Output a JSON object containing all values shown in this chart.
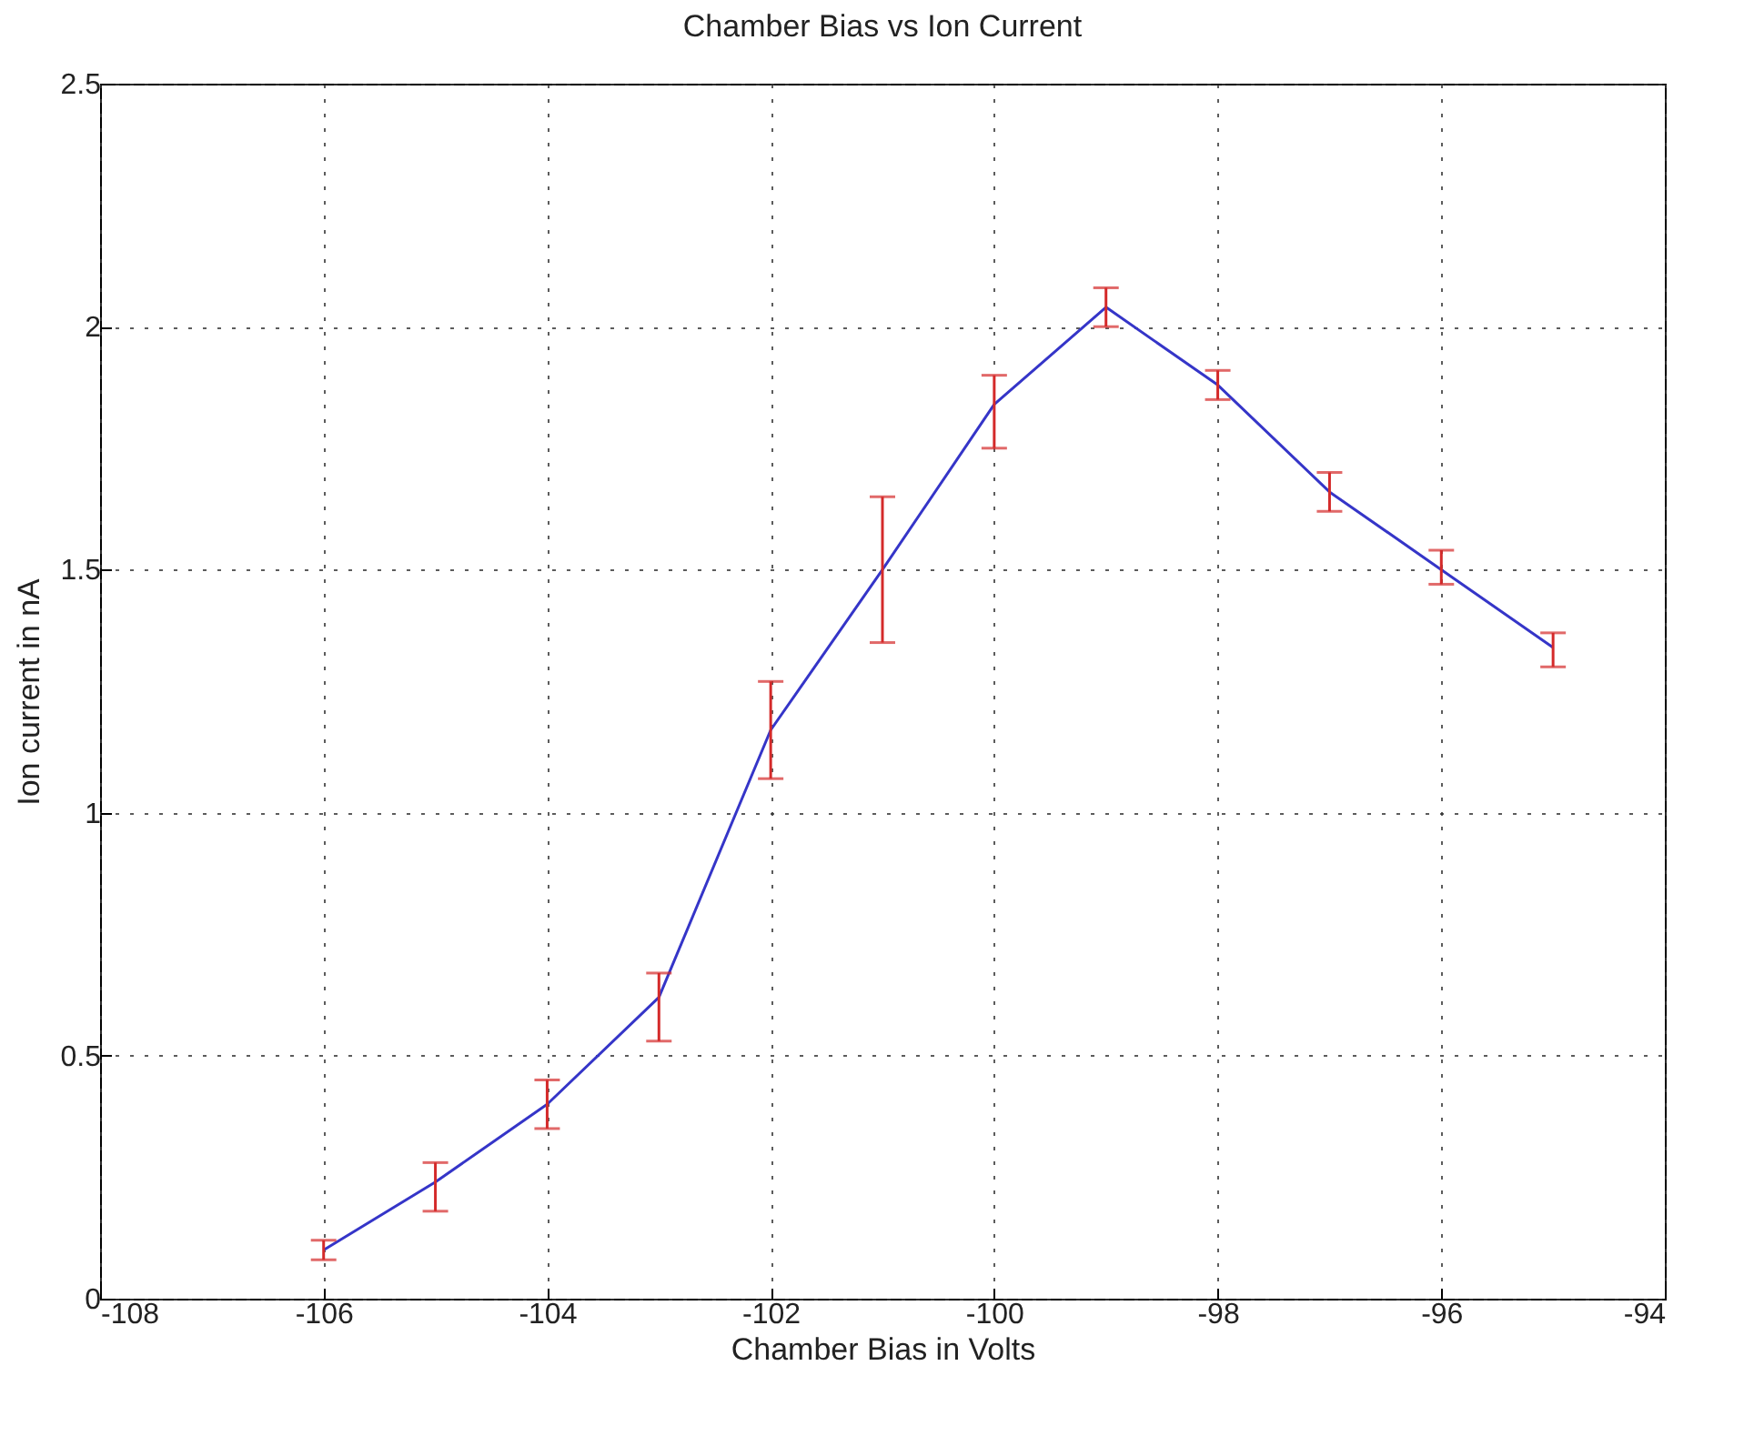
{
  "chart_data": {
    "type": "line",
    "title": "Chamber Bias vs Ion Current",
    "xlabel": "Chamber Bias in Volts",
    "ylabel": "Ion current in nA",
    "x": [
      -106,
      -105,
      -104,
      -103,
      -102,
      -101,
      -100,
      -99,
      -98,
      -97,
      -96,
      -95
    ],
    "series": [
      {
        "color": "#3535c8",
        "values": [
          0.1,
          0.24,
          0.4,
          0.62,
          1.17,
          1.5,
          1.84,
          2.04,
          1.88,
          1.66,
          1.5,
          1.34
        ],
        "errors": [
          [
            0.08,
            0.12
          ],
          [
            0.18,
            0.28
          ],
          [
            0.35,
            0.45
          ],
          [
            0.53,
            0.67
          ],
          [
            1.07,
            1.27
          ],
          [
            1.35,
            1.65
          ],
          [
            1.75,
            1.9
          ],
          [
            2.0,
            2.08
          ],
          [
            1.85,
            1.91
          ],
          [
            1.62,
            1.7
          ],
          [
            1.47,
            1.54
          ],
          [
            1.3,
            1.37
          ]
        ]
      }
    ],
    "xlim": [
      -108,
      -94
    ],
    "xticks": [
      -108,
      -106,
      -104,
      -102,
      -100,
      -98,
      -96,
      -94
    ],
    "ylim": [
      0,
      2.5
    ],
    "yticks": [
      0,
      0.5,
      1,
      1.5,
      2,
      2.5
    ],
    "grid": true,
    "marker": "none",
    "line_style": "solid"
  }
}
